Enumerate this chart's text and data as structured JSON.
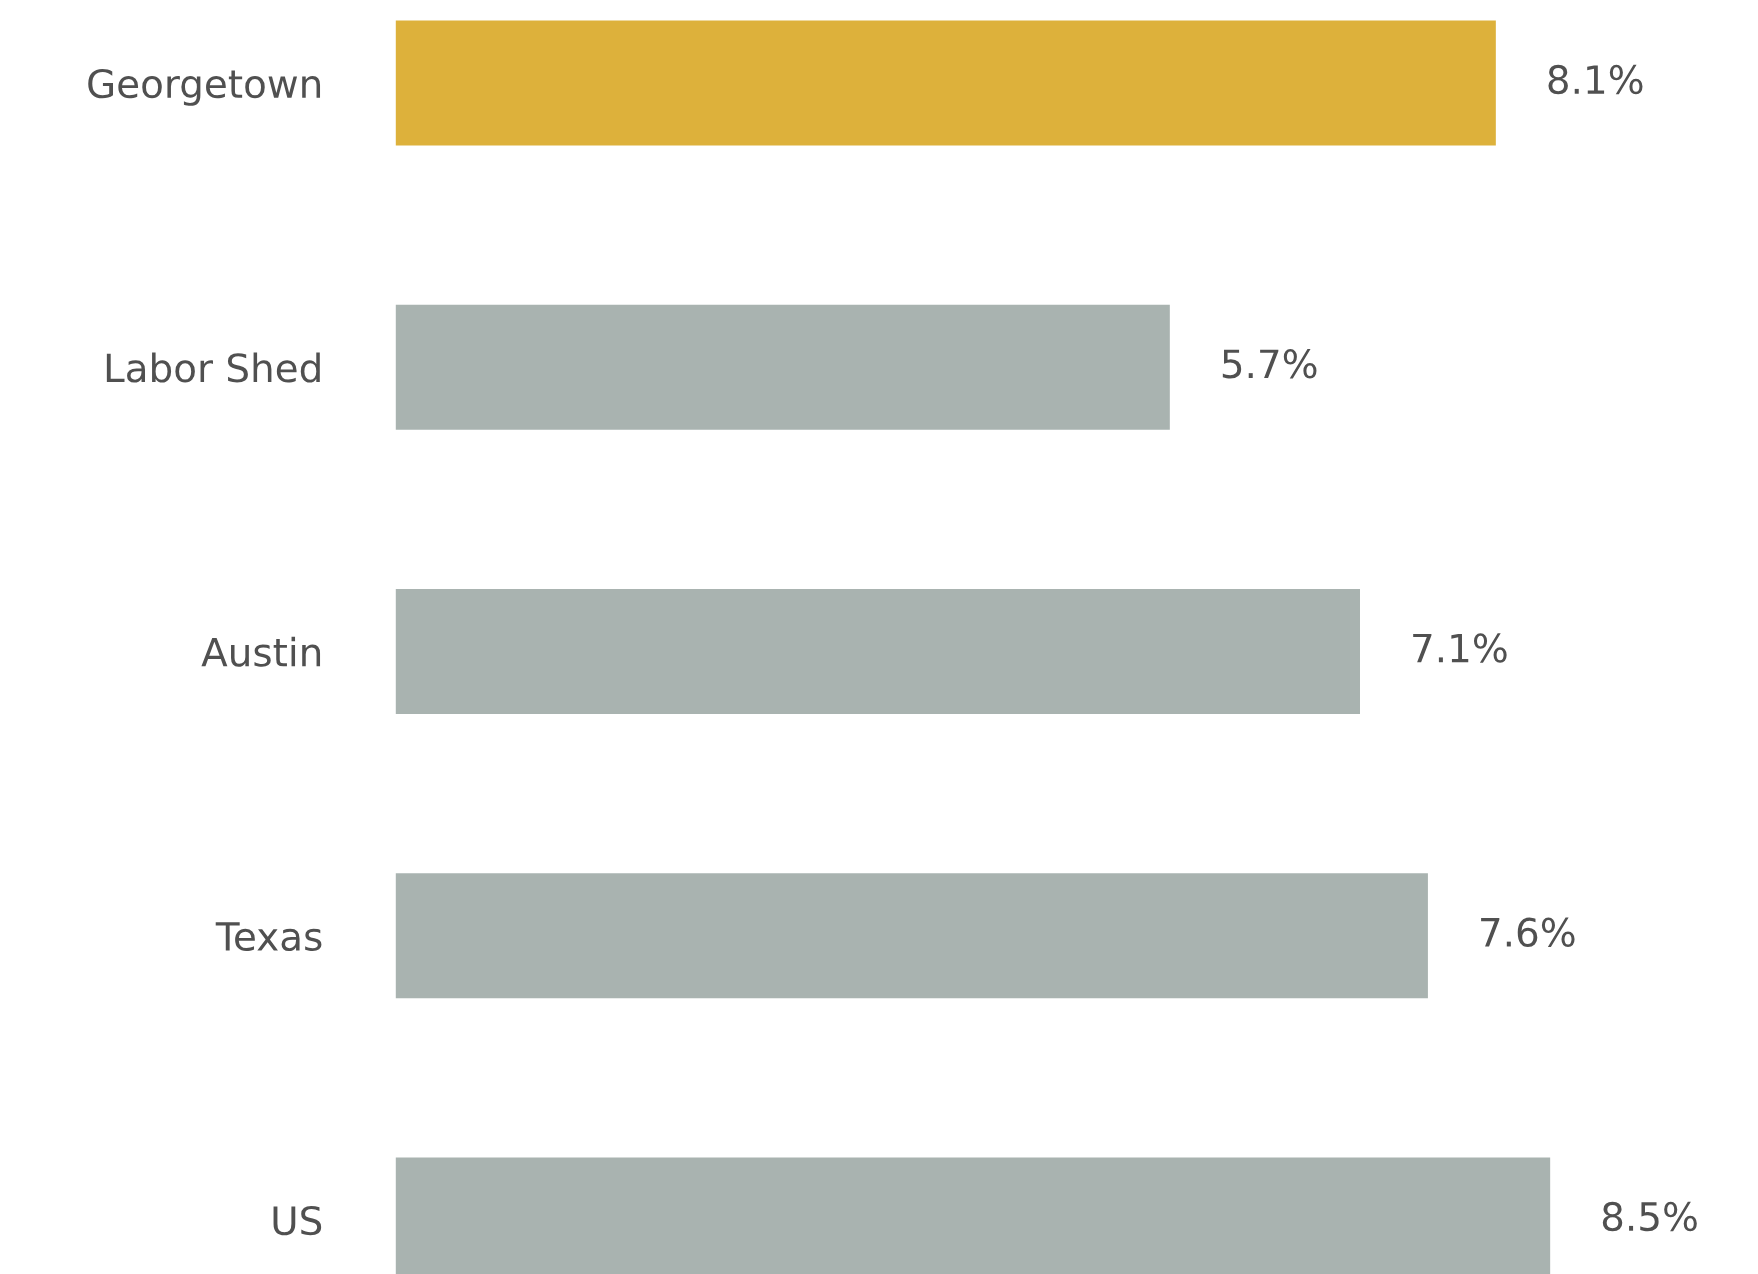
{
  "chart_data": {
    "type": "bar",
    "orientation": "horizontal",
    "categories": [
      "Georgetown",
      "Labor Shed",
      "Austin",
      "Texas",
      "US"
    ],
    "values": [
      8.1,
      5.7,
      7.1,
      7.6,
      8.5
    ],
    "colors": [
      "#ddb13b",
      "#a9b3b0",
      "#a9b3b0",
      "#a9b3b0",
      "#a9b3b0"
    ],
    "value_labels": [
      "8.1%",
      "5.7%",
      "7.1%",
      "7.6%",
      "8.5%"
    ],
    "grid": false,
    "legend": false
  }
}
